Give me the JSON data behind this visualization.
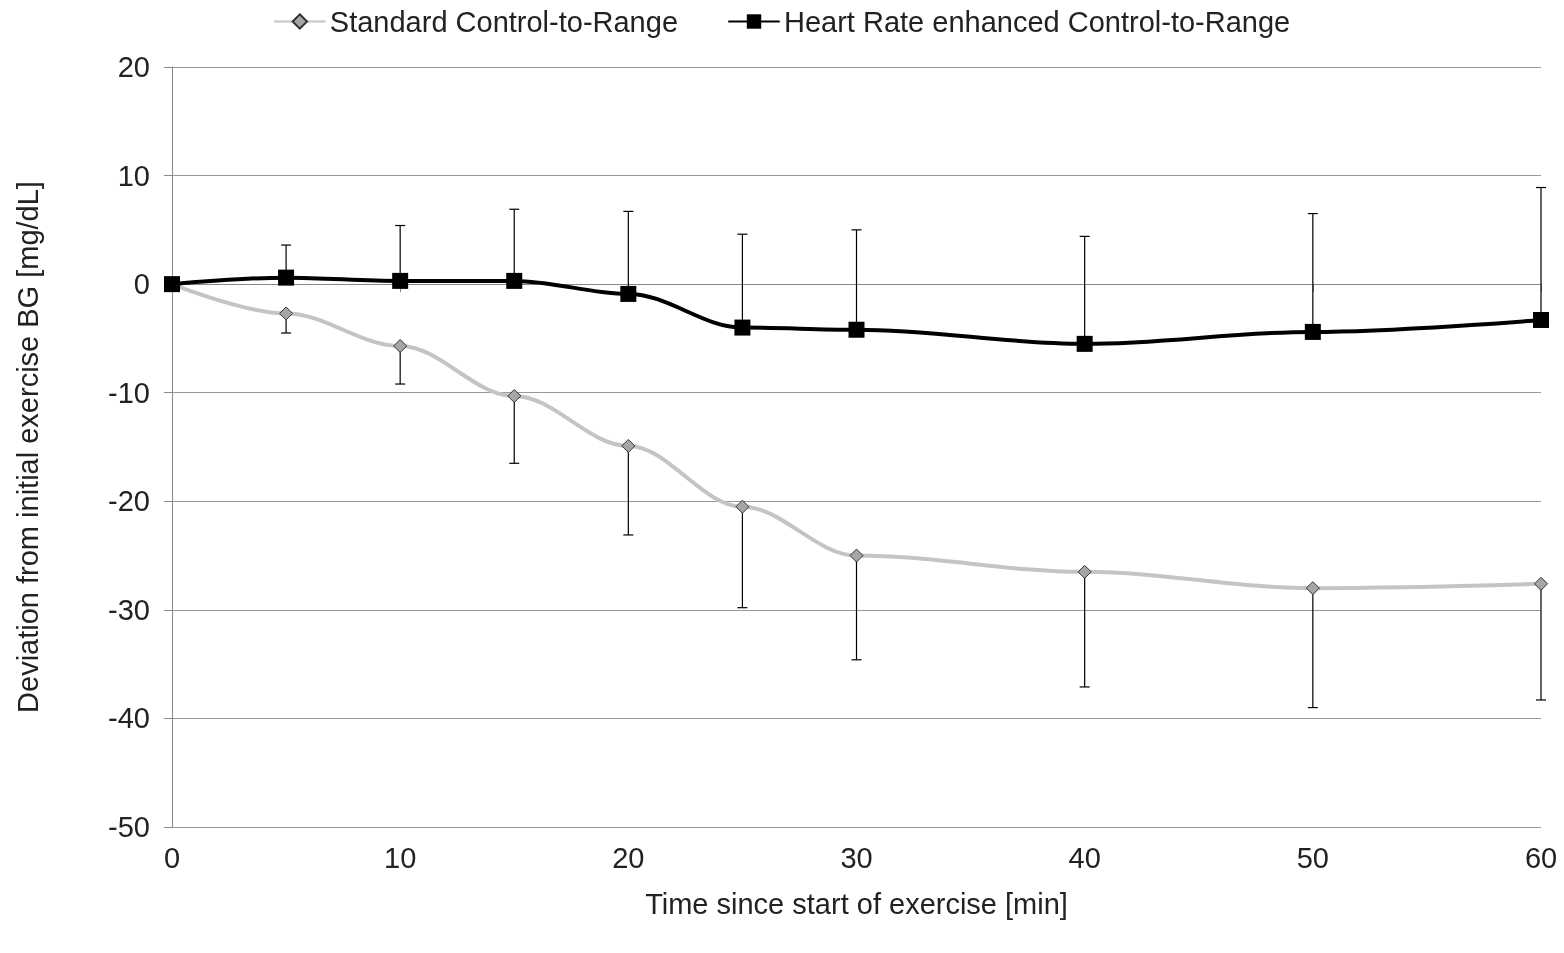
{
  "chart_data": {
    "type": "line",
    "xlabel": "Time since start of exercise [min]",
    "ylabel": "Deviation from initial exercise BG [mg/dL]",
    "x": [
      0,
      5,
      10,
      15,
      20,
      25,
      30,
      40,
      50,
      60
    ],
    "series": [
      {
        "name": "Standard Control-to-Range",
        "color": "#c4c4c4",
        "marker": "diamond",
        "values": [
          0,
          -2.7,
          -5.7,
          -10.3,
          -14.9,
          -20.5,
          -25.0,
          -26.5,
          -28.0,
          -27.6
        ],
        "errors": [
          null,
          [
            -4.5,
            -2.7
          ],
          [
            -9.2,
            -5.7
          ],
          [
            -16.5,
            -10.3
          ],
          [
            -23.1,
            -14.9
          ],
          [
            -29.8,
            -20.5
          ],
          [
            -34.6,
            -25.0
          ],
          [
            -37.1,
            -26.5
          ],
          [
            -39.0,
            -28.0
          ],
          [
            -38.3,
            -27.6
          ]
        ]
      },
      {
        "name": "Heart Rate enhanced Control-to-Range",
        "color": "#000000",
        "marker": "square",
        "values": [
          0,
          0.6,
          0.3,
          0.3,
          -0.9,
          -4.0,
          -4.2,
          -5.5,
          -4.4,
          -3.3
        ],
        "errors": [
          null,
          [
            0.6,
            3.6
          ],
          [
            0.3,
            5.4
          ],
          [
            0.3,
            6.9
          ],
          [
            -0.9,
            6.7
          ],
          [
            -4.0,
            4.6
          ],
          [
            -4.2,
            5.0
          ],
          [
            -5.5,
            4.4
          ],
          [
            -4.4,
            6.5
          ],
          [
            -3.3,
            8.9
          ]
        ]
      }
    ],
    "xlim": [
      0,
      60
    ],
    "xticks": [
      0,
      10,
      20,
      30,
      40,
      50,
      60
    ],
    "ylim": [
      -50,
      20
    ],
    "yticks": [
      -50,
      -40,
      -30,
      -20,
      -10,
      0,
      10,
      20
    ],
    "grid": "y",
    "legend": "top",
    "line_style": "solid"
  }
}
